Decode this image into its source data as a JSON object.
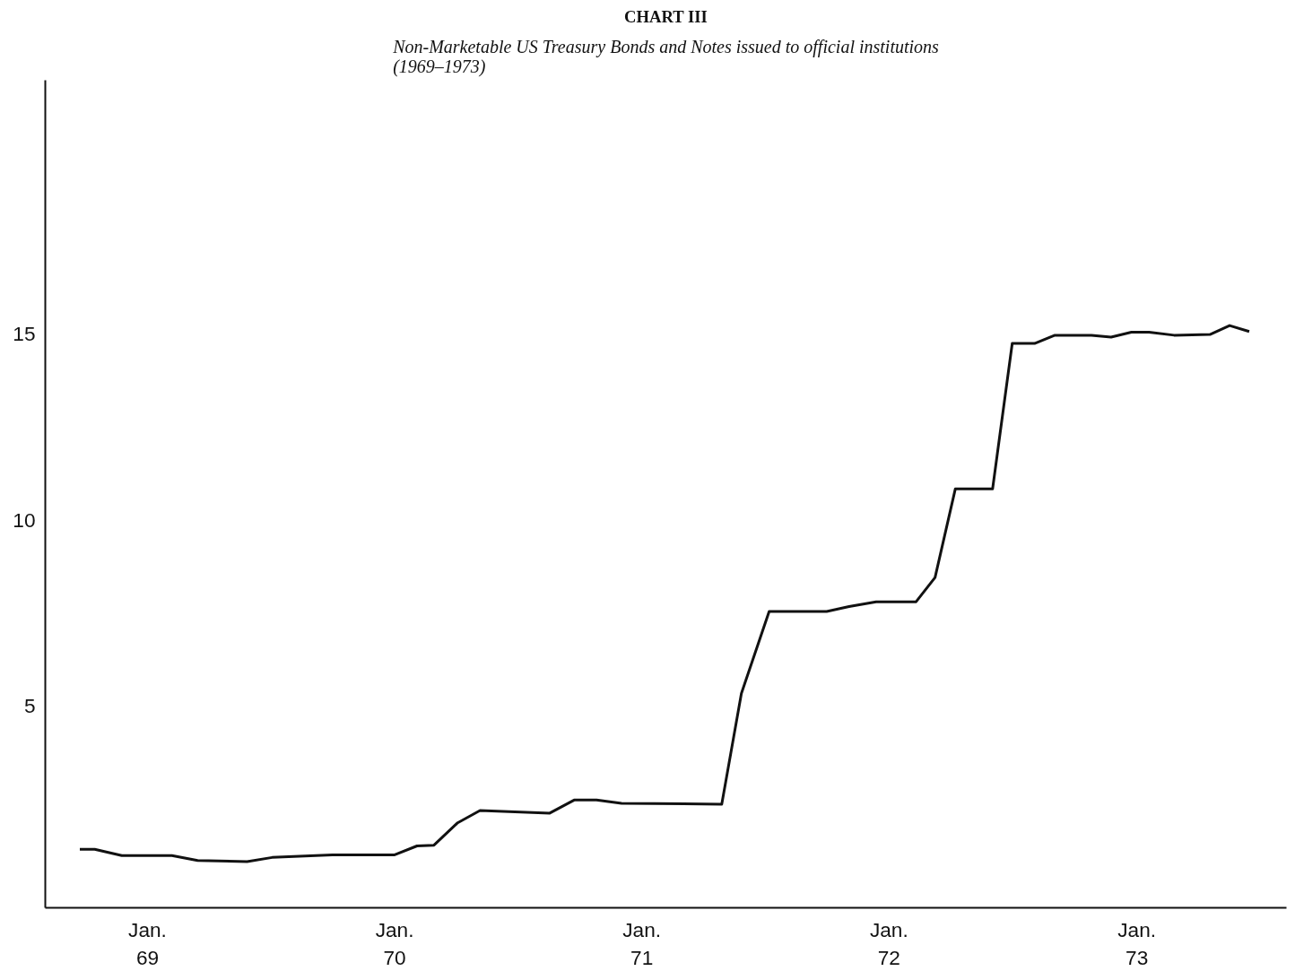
{
  "chart_data": {
    "type": "line",
    "title": "CHART III",
    "subtitle": "Non-Marketable US Treasury Bonds and Notes issued to official institutions\n(1969–1973)",
    "x": [
      "1968-09-23",
      "1968-10-15",
      "1968-11-24",
      "1969-02-06",
      "1969-03-16",
      "1969-05-28",
      "1969-07-04",
      "1969-10-01",
      "1970-01-01",
      "1970-02-03",
      "1970-02-28",
      "1970-04-04",
      "1970-05-07",
      "1970-08-18",
      "1970-09-23",
      "1970-10-26",
      "1970-12-02",
      "1971-04-29",
      "1971-05-28",
      "1971-07-08",
      "1971-10-01",
      "1971-11-03",
      "1971-12-13",
      "1972-02-10",
      "1972-03-09",
      "1972-04-08",
      "1972-06-02",
      "1972-07-01",
      "1972-08-03",
      "1972-09-02",
      "1972-10-26",
      "1972-11-24",
      "1972-12-24",
      "1973-01-19",
      "1973-02-25",
      "1973-04-19",
      "1973-05-18",
      "1973-06-16"
    ],
    "series": [
      {
        "color": "#111111",
        "values": [
          1.17,
          1.17,
          1.0,
          1.0,
          0.87,
          0.84,
          0.95,
          1.02,
          1.02,
          1.26,
          1.28,
          1.88,
          2.21,
          2.14,
          2.49,
          2.49,
          2.4,
          2.38,
          5.35,
          7.55,
          7.55,
          7.68,
          7.81,
          7.81,
          8.46,
          10.84,
          10.84,
          14.74,
          14.74,
          14.96,
          14.96,
          14.91,
          15.04,
          15.04,
          14.96,
          14.98,
          15.22,
          15.06
        ]
      }
    ],
    "xlim": [
      "1968-08-03",
      "1973-08-10"
    ],
    "ylim": [
      -0.4,
      21.8
    ],
    "xticks": [
      {
        "value": "1969-01-01",
        "label": "Jan.\n69"
      },
      {
        "value": "1970-01-01",
        "label": "Jan.\n70"
      },
      {
        "value": "1971-01-01",
        "label": "Jan.\n71"
      },
      {
        "value": "1972-01-01",
        "label": "Jan.\n72"
      },
      {
        "value": "1973-01-01",
        "label": "Jan.\n73"
      }
    ],
    "yticks": [
      5,
      10,
      15
    ],
    "grid": false,
    "marker": "none",
    "line_style": "solid"
  }
}
